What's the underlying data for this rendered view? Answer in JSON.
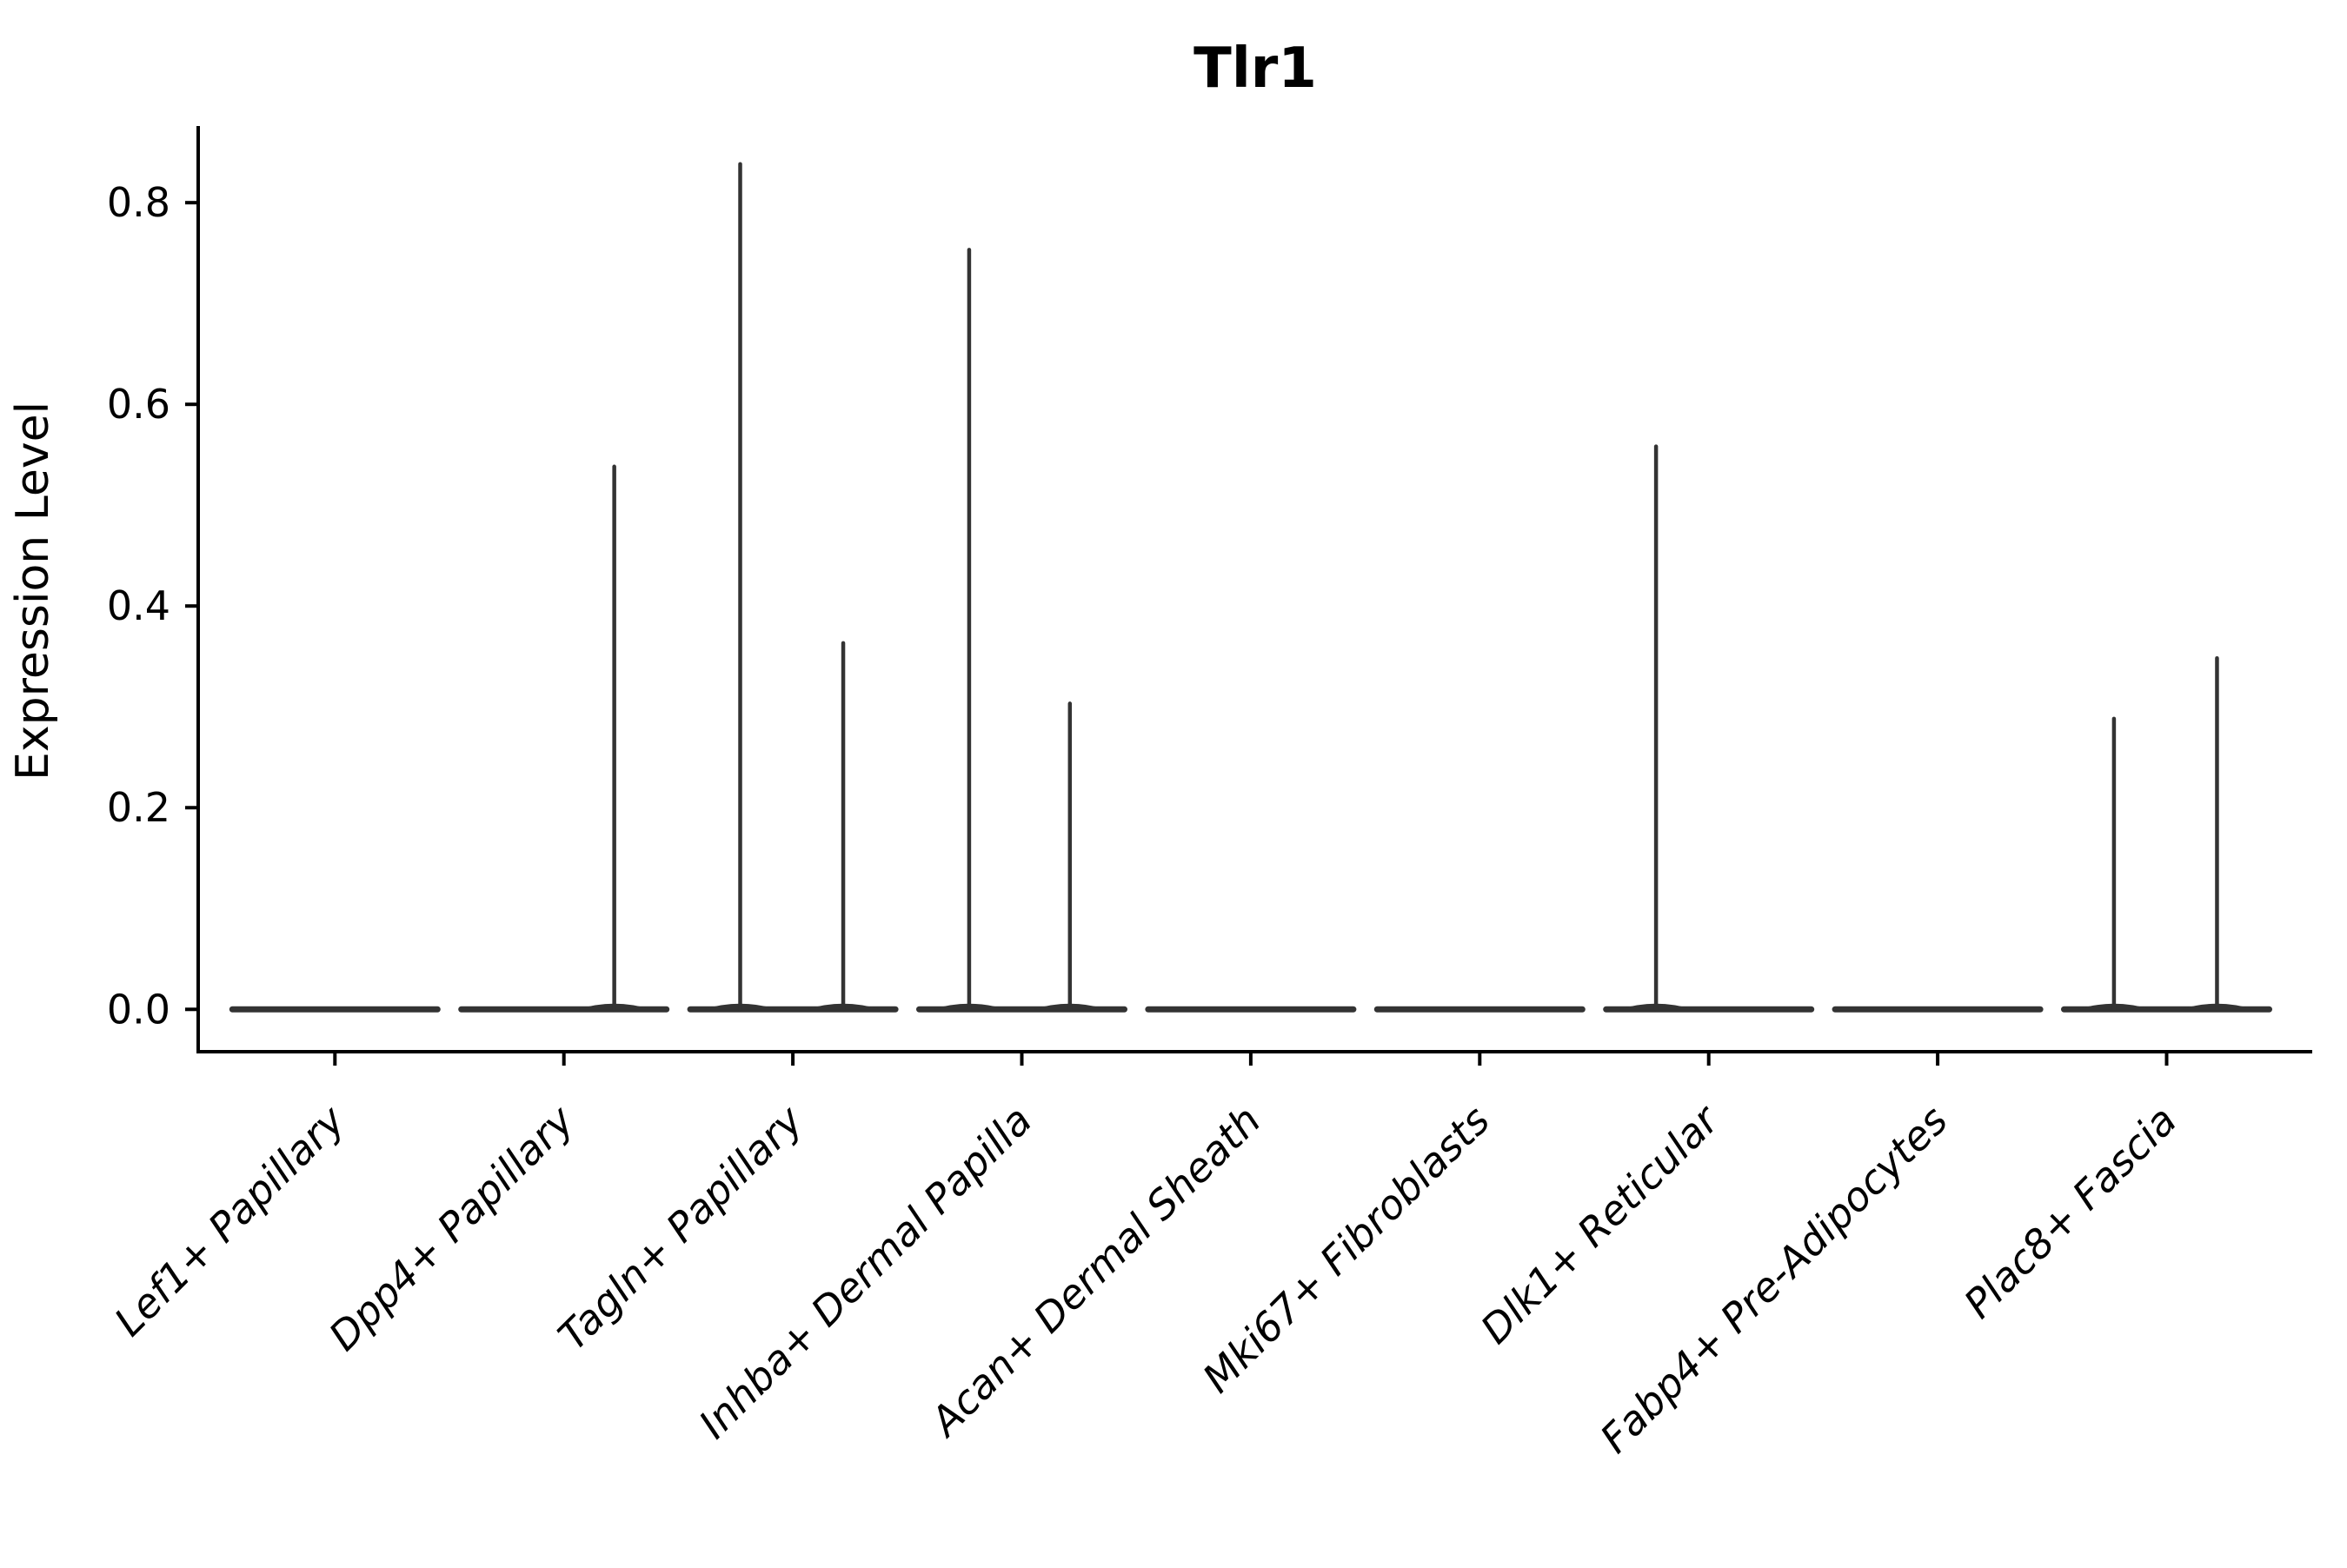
{
  "chart_data": {
    "type": "violin",
    "title": "Tlr1",
    "xlabel": "",
    "ylabel": "Expression Level",
    "categories": [
      "Lef1+ Papillary",
      "Dpp4+ Papillary",
      "Tagln+ Papillary",
      "Inhba+ Dermal Papilla",
      "Acan+ Dermal Sheath",
      "Mki67+ Fibroblasts",
      "Dlk1+ Reticular",
      "Fabp4+ Pre-Adipocytes",
      "Plac8+ Fascia"
    ],
    "yticks": [
      "0.0",
      "0.2",
      "0.4",
      "0.6",
      "0.8"
    ],
    "ytick_values": [
      0.0,
      0.2,
      0.4,
      0.6,
      0.8
    ],
    "ylim": [
      -0.042,
      0.876
    ],
    "grid": false,
    "legend_position": "none",
    "violins": [
      {
        "category": "Lef1+ Papillary",
        "baseline_value": 0.0,
        "spikes": []
      },
      {
        "category": "Dpp4+ Papillary",
        "baseline_value": 0.0,
        "spikes": [
          {
            "offset": 0.22,
            "value": 0.54
          }
        ]
      },
      {
        "category": "Tagln+ Papillary",
        "baseline_value": 0.0,
        "spikes": [
          {
            "offset": -0.23,
            "value": 0.84
          },
          {
            "offset": 0.22,
            "value": 0.365
          }
        ]
      },
      {
        "category": "Inhba+ Dermal Papilla",
        "baseline_value": 0.0,
        "spikes": [
          {
            "offset": -0.23,
            "value": 0.755
          },
          {
            "offset": 0.21,
            "value": 0.305
          }
        ]
      },
      {
        "category": "Acan+ Dermal Sheath",
        "baseline_value": 0.0,
        "spikes": []
      },
      {
        "category": "Mki67+ Fibroblasts",
        "baseline_value": 0.0,
        "spikes": []
      },
      {
        "category": "Dlk1+ Reticular",
        "baseline_value": 0.0,
        "spikes": [
          {
            "offset": -0.23,
            "value": 0.56
          }
        ]
      },
      {
        "category": "Fabp4+ Pre-Adipocytes",
        "baseline_value": 0.0,
        "spikes": []
      },
      {
        "category": "Plac8+ Fascia",
        "baseline_value": 0.0,
        "spikes": [
          {
            "offset": -0.23,
            "value": 0.29
          },
          {
            "offset": 0.22,
            "value": 0.35
          }
        ]
      }
    ],
    "colors": {
      "violin_stroke": "#333333",
      "axis": "#000000",
      "text": "#000000",
      "background": "#ffffff"
    }
  }
}
